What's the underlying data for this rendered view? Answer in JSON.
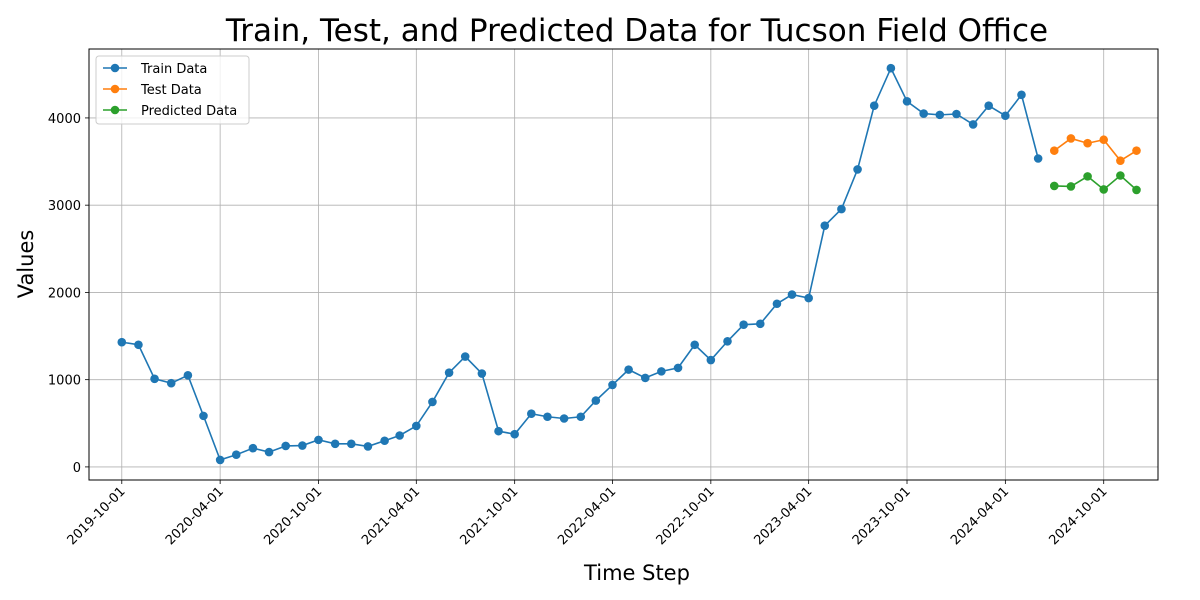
{
  "chart_data": {
    "type": "line",
    "title": "Train, Test, and Predicted Data for Tucson Field Office",
    "xlabel": "Time Step",
    "ylabel": "Values",
    "grid": true,
    "legend_position": "top-left",
    "ylim": [
      -150,
      4790
    ],
    "xlim": [
      "2019-08-01",
      "2025-01-10"
    ],
    "x_ticks": [
      "2019-10-01",
      "2020-04-01",
      "2020-10-01",
      "2021-04-01",
      "2021-10-01",
      "2022-04-01",
      "2022-10-01",
      "2023-04-01",
      "2023-10-01",
      "2024-04-01",
      "2024-10-01"
    ],
    "y_ticks": [
      0,
      1000,
      2000,
      3000,
      4000
    ],
    "series": [
      {
        "name": "Train Data",
        "color": "#1f77b4",
        "x": [
          "2019-10-01",
          "2019-11-01",
          "2019-12-01",
          "2020-01-01",
          "2020-02-01",
          "2020-03-01",
          "2020-04-01",
          "2020-05-01",
          "2020-06-01",
          "2020-07-01",
          "2020-08-01",
          "2020-09-01",
          "2020-10-01",
          "2020-11-01",
          "2020-12-01",
          "2021-01-01",
          "2021-02-01",
          "2021-03-01",
          "2021-04-01",
          "2021-05-01",
          "2021-06-01",
          "2021-07-01",
          "2021-08-01",
          "2021-09-01",
          "2021-10-01",
          "2021-11-01",
          "2021-12-01",
          "2022-01-01",
          "2022-02-01",
          "2022-03-01",
          "2022-04-01",
          "2022-05-01",
          "2022-06-01",
          "2022-07-01",
          "2022-08-01",
          "2022-09-01",
          "2022-10-01",
          "2022-11-01",
          "2022-12-01",
          "2023-01-01",
          "2023-02-01",
          "2023-03-01",
          "2023-04-01",
          "2023-05-01",
          "2023-06-01",
          "2023-07-01",
          "2023-08-01",
          "2023-09-01",
          "2023-10-01",
          "2023-11-01",
          "2023-12-01",
          "2024-01-01",
          "2024-02-01",
          "2024-03-01",
          "2024-04-01",
          "2024-05-01",
          "2024-06-01"
        ],
        "values": [
          1430,
          1400,
          1010,
          960,
          1050,
          585,
          80,
          140,
          215,
          170,
          240,
          245,
          310,
          265,
          265,
          235,
          300,
          360,
          470,
          745,
          1080,
          1265,
          1070,
          410,
          375,
          610,
          575,
          555,
          575,
          760,
          940,
          1115,
          1020,
          1095,
          1135,
          1400,
          1225,
          1440,
          1630,
          1640,
          1870,
          1975,
          1935,
          2765,
          2955,
          3410,
          4140,
          4570,
          4190,
          4050,
          4035,
          4045,
          3925,
          4140,
          4025,
          4265,
          3535
        ]
      },
      {
        "name": "Test Data",
        "color": "#ff7f0e",
        "x": [
          "2024-07-01",
          "2024-08-01",
          "2024-09-01",
          "2024-10-01",
          "2024-11-01",
          "2024-12-01"
        ],
        "values": [
          3625,
          3765,
          3710,
          3750,
          3510,
          3625
        ]
      },
      {
        "name": "Predicted Data",
        "color": "#2ca02c",
        "x": [
          "2024-07-01",
          "2024-08-01",
          "2024-09-01",
          "2024-10-01",
          "2024-11-01",
          "2024-12-01"
        ],
        "values": [
          3220,
          3215,
          3330,
          3180,
          3340,
          3175
        ]
      }
    ]
  }
}
